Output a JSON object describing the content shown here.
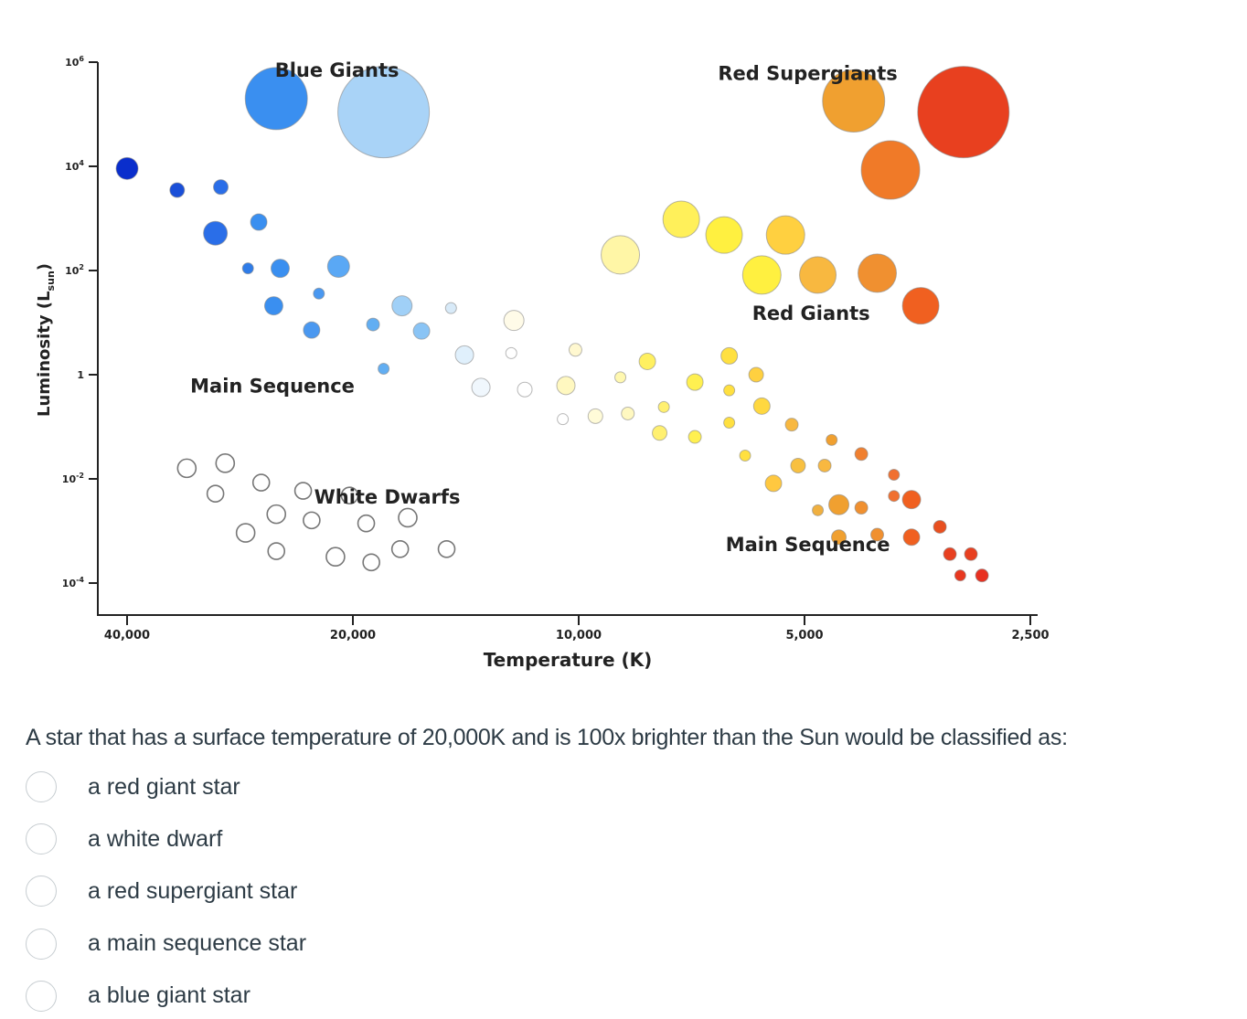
{
  "chart_data": {
    "type": "scatter",
    "xlabel": "Temperature (K)",
    "ylabel": "Luminosity (L_sun)",
    "ylabel_main": "Luminosity (L",
    "ylabel_sub": "sun",
    "ylabel_end": ")",
    "x_scale": "log (reversed)",
    "y_scale": "log",
    "xlim": [
      41000,
      2450
    ],
    "ylim": [
      5e-05,
      1000000
    ],
    "grid": false,
    "x_ticks": [
      {
        "value": 40000,
        "label": "40,000"
      },
      {
        "value": 20000,
        "label": "20,000"
      },
      {
        "value": 10000,
        "label": "10,000"
      },
      {
        "value": 5000,
        "label": "5,000"
      },
      {
        "value": 2500,
        "label": "2,500"
      }
    ],
    "y_ticks": [
      {
        "value": 1000000,
        "base": "10",
        "exp": "6"
      },
      {
        "value": 10000,
        "base": "10",
        "exp": "4"
      },
      {
        "value": 100,
        "base": "10",
        "exp": "2"
      },
      {
        "value": 1,
        "base": "1",
        "exp": ""
      },
      {
        "value": 0.01,
        "base": "10",
        "exp": "-2"
      },
      {
        "value": 0.0001,
        "base": "10",
        "exp": "-4"
      }
    ],
    "annotations": [
      {
        "text": "Blue Giants",
        "T": 21000,
        "L": 700000
      },
      {
        "text": "Red Supergiants",
        "T": 4950,
        "L": 600000
      },
      {
        "text": "Red Giants",
        "T": 4900,
        "L": 15
      },
      {
        "text": "Main Sequence",
        "T": 25600,
        "L": 0.6
      },
      {
        "text": "White Dwarfs",
        "T": 18000,
        "L": 0.0045
      },
      {
        "text": "Main Sequence",
        "T": 4950,
        "L": 0.00055
      }
    ],
    "series": [
      {
        "group": "blue-giants",
        "points": [
          {
            "T": 25300,
            "L": 200000,
            "size": 34,
            "color": "#3a8ff0"
          },
          {
            "T": 18200,
            "L": 110000,
            "size": 50,
            "color": "#a9d3f7"
          }
        ]
      },
      {
        "group": "red-supergiants",
        "points": [
          {
            "T": 4300,
            "L": 180000,
            "size": 34,
            "color": "#f0a030"
          },
          {
            "T": 3070,
            "L": 110000,
            "size": 50,
            "color": "#e8401f"
          },
          {
            "T": 3840,
            "L": 8500,
            "size": 32,
            "color": "#f07a28"
          }
        ]
      },
      {
        "group": "red-giants",
        "points": [
          {
            "T": 8800,
            "L": 200,
            "size": 21,
            "color": "#fff6a6"
          },
          {
            "T": 7300,
            "L": 960,
            "size": 20,
            "color": "#fff05a"
          },
          {
            "T": 6400,
            "L": 480,
            "size": 20,
            "color": "#fff040"
          },
          {
            "T": 5300,
            "L": 480,
            "size": 21,
            "color": "#ffd040"
          },
          {
            "T": 5700,
            "L": 82,
            "size": 21,
            "color": "#fff040"
          },
          {
            "T": 4800,
            "L": 82,
            "size": 20,
            "color": "#f8b840"
          },
          {
            "T": 4000,
            "L": 89,
            "size": 21,
            "color": "#f09030"
          },
          {
            "T": 3500,
            "L": 21,
            "size": 20,
            "color": "#f06020"
          }
        ]
      },
      {
        "group": "main-sequence",
        "points": [
          {
            "T": 40000,
            "L": 9100,
            "size": 12,
            "color": "#0a2ecc"
          },
          {
            "T": 34300,
            "L": 3500,
            "size": 8,
            "color": "#1a4fd8"
          },
          {
            "T": 30000,
            "L": 4000,
            "size": 8,
            "color": "#2a6ee8"
          },
          {
            "T": 30500,
            "L": 520,
            "size": 13,
            "color": "#2a6ee8"
          },
          {
            "T": 26700,
            "L": 850,
            "size": 9,
            "color": "#3a8ff0"
          },
          {
            "T": 27600,
            "L": 110,
            "size": 6,
            "color": "#2f7ce8"
          },
          {
            "T": 25000,
            "L": 110,
            "size": 10,
            "color": "#3a8ff0"
          },
          {
            "T": 22200,
            "L": 36,
            "size": 6,
            "color": "#4a98f0"
          },
          {
            "T": 20900,
            "L": 120,
            "size": 12,
            "color": "#5aa8f5"
          },
          {
            "T": 25500,
            "L": 21,
            "size": 10,
            "color": "#3a8ff0"
          },
          {
            "T": 22700,
            "L": 7.2,
            "size": 9,
            "color": "#4a98f0"
          },
          {
            "T": 18800,
            "L": 9.2,
            "size": 7,
            "color": "#62aef2"
          },
          {
            "T": 17200,
            "L": 21,
            "size": 11,
            "color": "#a0d0f7"
          },
          {
            "T": 16200,
            "L": 6.9,
            "size": 9,
            "color": "#8ac4f5"
          },
          {
            "T": 14800,
            "L": 19,
            "size": 6,
            "color": "#d8eaf8"
          },
          {
            "T": 18200,
            "L": 1.3,
            "size": 6,
            "color": "#62aef2"
          },
          {
            "T": 14200,
            "L": 2.4,
            "size": 10,
            "color": "#e0f0fc"
          },
          {
            "T": 12300,
            "L": 2.6,
            "size": 6,
            "color": "#ffffff"
          },
          {
            "T": 13500,
            "L": 0.57,
            "size": 10,
            "color": "#f0f7fd"
          },
          {
            "T": 12200,
            "L": 11,
            "size": 11,
            "color": "#fffbe8"
          },
          {
            "T": 11800,
            "L": 0.52,
            "size": 8,
            "color": "#ffffff"
          },
          {
            "T": 10100,
            "L": 3.0,
            "size": 7,
            "color": "#fff8d0"
          },
          {
            "T": 10400,
            "L": 0.62,
            "size": 10,
            "color": "#fff8c0"
          },
          {
            "T": 10500,
            "L": 0.14,
            "size": 6,
            "color": "#ffffff"
          },
          {
            "T": 9500,
            "L": 0.16,
            "size": 8,
            "color": "#fffbd8"
          },
          {
            "T": 8600,
            "L": 0.18,
            "size": 7,
            "color": "#fff8c0"
          },
          {
            "T": 8800,
            "L": 0.89,
            "size": 6,
            "color": "#fff8b0"
          },
          {
            "T": 8100,
            "L": 1.8,
            "size": 9,
            "color": "#fff060"
          },
          {
            "T": 7800,
            "L": 0.076,
            "size": 8,
            "color": "#fff070"
          },
          {
            "T": 7700,
            "L": 0.24,
            "size": 6,
            "color": "#fff070"
          },
          {
            "T": 7000,
            "L": 0.72,
            "size": 9,
            "color": "#fff050"
          },
          {
            "T": 7000,
            "L": 0.064,
            "size": 7,
            "color": "#fff050"
          },
          {
            "T": 6300,
            "L": 2.3,
            "size": 9,
            "color": "#ffe040"
          },
          {
            "T": 6300,
            "L": 0.5,
            "size": 6,
            "color": "#ffe040"
          },
          {
            "T": 6300,
            "L": 0.12,
            "size": 6,
            "color": "#ffe040"
          },
          {
            "T": 5800,
            "L": 1.0,
            "size": 8,
            "color": "#ffd040"
          },
          {
            "T": 5700,
            "L": 0.25,
            "size": 9,
            "color": "#ffd840"
          },
          {
            "T": 6000,
            "L": 0.028,
            "size": 6,
            "color": "#ffe040"
          },
          {
            "T": 5500,
            "L": 0.0082,
            "size": 9,
            "color": "#ffc840"
          },
          {
            "T": 5200,
            "L": 0.11,
            "size": 7,
            "color": "#f8b840"
          },
          {
            "T": 5100,
            "L": 0.018,
            "size": 8,
            "color": "#f8c040"
          },
          {
            "T": 4700,
            "L": 0.018,
            "size": 7,
            "color": "#f8b840"
          },
          {
            "T": 4600,
            "L": 0.056,
            "size": 6,
            "color": "#f0a030"
          },
          {
            "T": 4800,
            "L": 0.0025,
            "size": 6,
            "color": "#f0b040"
          },
          {
            "T": 4500,
            "L": 0.0032,
            "size": 11,
            "color": "#f0a030"
          },
          {
            "T": 4200,
            "L": 0.03,
            "size": 7,
            "color": "#f08030"
          },
          {
            "T": 4200,
            "L": 0.0028,
            "size": 7,
            "color": "#f09030"
          },
          {
            "T": 4500,
            "L": 0.00076,
            "size": 8,
            "color": "#f0a030"
          },
          {
            "T": 4000,
            "L": 0.00085,
            "size": 7,
            "color": "#f09030"
          },
          {
            "T": 3800,
            "L": 0.012,
            "size": 6,
            "color": "#f07030"
          },
          {
            "T": 3800,
            "L": 0.0047,
            "size": 6,
            "color": "#f07030"
          },
          {
            "T": 3600,
            "L": 0.004,
            "size": 10,
            "color": "#f06020"
          },
          {
            "T": 3600,
            "L": 0.00076,
            "size": 9,
            "color": "#f06020"
          },
          {
            "T": 3300,
            "L": 0.0012,
            "size": 7,
            "color": "#e85020"
          },
          {
            "T": 3200,
            "L": 0.00036,
            "size": 7,
            "color": "#e84020"
          },
          {
            "T": 3000,
            "L": 0.00036,
            "size": 7,
            "color": "#e84020"
          },
          {
            "T": 3100,
            "L": 0.00014,
            "size": 6,
            "color": "#e83820"
          },
          {
            "T": 2900,
            "L": 0.00014,
            "size": 7,
            "color": "#e83020"
          }
        ]
      },
      {
        "group": "white-dwarfs",
        "hollow": true,
        "points": [
          {
            "T": 33300,
            "L": 0.016,
            "size": 10
          },
          {
            "T": 29600,
            "L": 0.02,
            "size": 10
          },
          {
            "T": 30500,
            "L": 0.0052,
            "size": 9
          },
          {
            "T": 26500,
            "L": 0.0085,
            "size": 9
          },
          {
            "T": 23300,
            "L": 0.0059,
            "size": 9
          },
          {
            "T": 25300,
            "L": 0.0021,
            "size": 10
          },
          {
            "T": 22700,
            "L": 0.0016,
            "size": 9
          },
          {
            "T": 20200,
            "L": 0.0048,
            "size": 9
          },
          {
            "T": 16900,
            "L": 0.0018,
            "size": 10
          },
          {
            "T": 19200,
            "L": 0.0014,
            "size": 9
          },
          {
            "T": 27800,
            "L": 0.00092,
            "size": 10
          },
          {
            "T": 25300,
            "L": 0.00041,
            "size": 9
          },
          {
            "T": 21100,
            "L": 0.00032,
            "size": 10
          },
          {
            "T": 18900,
            "L": 0.00025,
            "size": 9
          },
          {
            "T": 17300,
            "L": 0.00045,
            "size": 9
          },
          {
            "T": 15000,
            "L": 0.00045,
            "size": 9
          }
        ]
      }
    ]
  },
  "quiz": {
    "question": "A star that has a surface temperature of 20,000K and is 100x brighter than the Sun would be classified as:",
    "options": [
      {
        "label": "a red giant star",
        "selected": false
      },
      {
        "label": "a white dwarf",
        "selected": false
      },
      {
        "label": "a red supergiant star",
        "selected": false
      },
      {
        "label": "a main sequence star",
        "selected": false
      },
      {
        "label": "a blue giant star",
        "selected": false
      }
    ]
  }
}
